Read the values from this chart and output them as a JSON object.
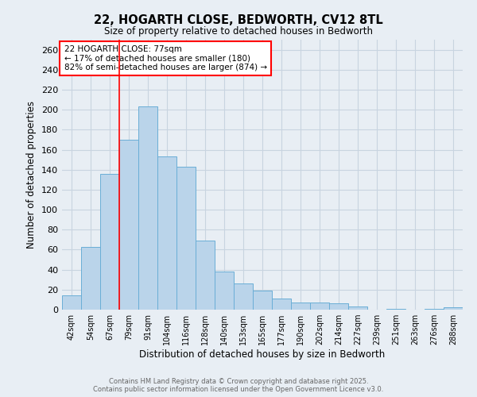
{
  "title": "22, HOGARTH CLOSE, BEDWORTH, CV12 8TL",
  "subtitle": "Size of property relative to detached houses in Bedworth",
  "xlabel": "Distribution of detached houses by size in Bedworth",
  "ylabel": "Number of detached properties",
  "footer_line1": "Contains HM Land Registry data © Crown copyright and database right 2025.",
  "footer_line2": "Contains public sector information licensed under the Open Government Licence v3.0.",
  "bins": [
    "42sqm",
    "54sqm",
    "67sqm",
    "79sqm",
    "91sqm",
    "104sqm",
    "116sqm",
    "128sqm",
    "140sqm",
    "153sqm",
    "165sqm",
    "177sqm",
    "190sqm",
    "202sqm",
    "214sqm",
    "227sqm",
    "239sqm",
    "251sqm",
    "263sqm",
    "276sqm",
    "288sqm"
  ],
  "values": [
    14,
    63,
    136,
    170,
    203,
    153,
    143,
    69,
    38,
    26,
    19,
    11,
    7,
    7,
    6,
    3,
    0,
    1,
    0,
    1,
    2
  ],
  "bar_color": "#bad4ea",
  "bar_edge_color": "#6aaed6",
  "grid_color": "#c8d4e0",
  "background_color": "#e8eef4",
  "vline_x": 2.5,
  "vline_color": "red",
  "annotation_text": "22 HOGARTH CLOSE: 77sqm\n← 17% of detached houses are smaller (180)\n82% of semi-detached houses are larger (874) →",
  "ylim": [
    0,
    270
  ],
  "yticks": [
    0,
    20,
    40,
    60,
    80,
    100,
    120,
    140,
    160,
    180,
    200,
    220,
    240,
    260
  ]
}
